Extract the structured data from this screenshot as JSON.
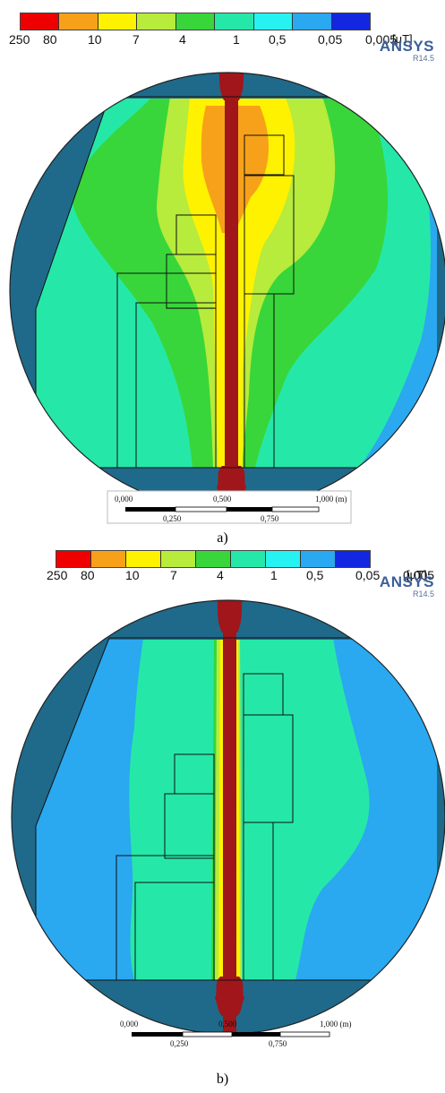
{
  "legend": {
    "labels": [
      "250",
      "80",
      "10",
      "7",
      "4",
      "1",
      "0,5",
      "0,05",
      "0,005"
    ],
    "unit": "[μT]",
    "colors": [
      "#ee0000",
      "#f7a11a",
      "#fff200",
      "#b7eb3c",
      "#38d63a",
      "#25e8a8",
      "#27f2f2",
      "#2aa8f0",
      "#1427e0"
    ]
  },
  "brand": {
    "name": "ANSYS",
    "version": "R14.5"
  },
  "scale_bar": {
    "top_labels": [
      "0,000",
      "0,500",
      "1,000 (m)"
    ],
    "bottom_labels": [
      "0,250",
      "0,750"
    ]
  },
  "panels": [
    {
      "caption": "a)"
    },
    {
      "caption": "b)"
    }
  ],
  "colors": {
    "outer_region": "#1f6a8a",
    "conductor": "#a0161a",
    "outline": "#111111"
  }
}
